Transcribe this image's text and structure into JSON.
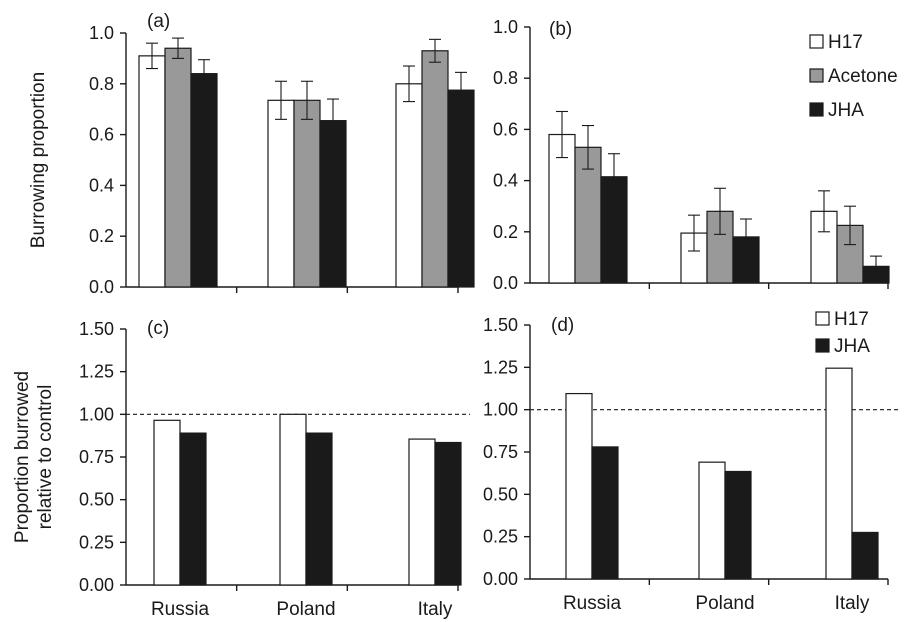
{
  "chart_data": [
    {
      "panel": "(a)",
      "type": "bar",
      "categories": [
        "Russia",
        "Poland",
        "Italy"
      ],
      "series": [
        {
          "name": "H17",
          "color": "#ffffff",
          "values": [
            0.91,
            0.735,
            0.8
          ],
          "errors": [
            0.05,
            0.075,
            0.07
          ]
        },
        {
          "name": "Acetone",
          "color": "#999999",
          "values": [
            0.94,
            0.735,
            0.93
          ],
          "errors": [
            0.04,
            0.075,
            0.045
          ]
        },
        {
          "name": "JHA",
          "color": "#1a1a1a",
          "values": [
            0.84,
            0.655,
            0.775
          ],
          "errors": [
            0.055,
            0.085,
            0.07
          ]
        }
      ],
      "ylim": [
        0,
        1.0
      ],
      "yticks": [
        "0.0",
        "0.2",
        "0.4",
        "0.6",
        "0.8",
        "1.0"
      ],
      "ylabel": "Burrowing proportion",
      "show_xlabels": false
    },
    {
      "panel": "(b)",
      "type": "bar",
      "categories": [
        "Russia",
        "Poland",
        "Italy"
      ],
      "series": [
        {
          "name": "H17",
          "color": "#ffffff",
          "values": [
            0.58,
            0.195,
            0.28
          ],
          "errors": [
            0.09,
            0.07,
            0.08
          ]
        },
        {
          "name": "Acetone",
          "color": "#999999",
          "values": [
            0.53,
            0.28,
            0.225
          ],
          "errors": [
            0.085,
            0.09,
            0.075
          ]
        },
        {
          "name": "JHA",
          "color": "#1a1a1a",
          "values": [
            0.415,
            0.18,
            0.065
          ],
          "errors": [
            0.09,
            0.07,
            0.04
          ]
        }
      ],
      "ylim": [
        0,
        1.0
      ],
      "yticks": [
        "0.0",
        "0.2",
        "0.4",
        "0.6",
        "0.8",
        "1.0"
      ],
      "ylabel": "",
      "show_xlabels": false,
      "legend": [
        "H17",
        "Acetone",
        "JHA"
      ],
      "legend_position": "top-right"
    },
    {
      "panel": "(c)",
      "type": "bar",
      "categories": [
        "Russia",
        "Poland",
        "Italy"
      ],
      "series": [
        {
          "name": "H17",
          "color": "#ffffff",
          "values": [
            0.965,
            1.0,
            0.855
          ]
        },
        {
          "name": "JHA",
          "color": "#1a1a1a",
          "values": [
            0.89,
            0.89,
            0.835
          ]
        }
      ],
      "ylim": [
        0,
        1.5
      ],
      "yticks": [
        "0.00",
        "0.25",
        "0.50",
        "0.75",
        "1.00",
        "1.25",
        "1.50"
      ],
      "ylabel": [
        "Proportion burrowed",
        "relative to control"
      ],
      "reference_line": 1.0,
      "show_xlabels": true
    },
    {
      "panel": "(d)",
      "type": "bar",
      "categories": [
        "Russia",
        "Poland",
        "Italy"
      ],
      "series": [
        {
          "name": "H17",
          "color": "#ffffff",
          "values": [
            1.095,
            0.69,
            1.245
          ]
        },
        {
          "name": "JHA",
          "color": "#1a1a1a",
          "values": [
            0.78,
            0.635,
            0.275
          ]
        }
      ],
      "ylim": [
        0,
        1.5
      ],
      "yticks": [
        "0.00",
        "0.25",
        "0.50",
        "0.75",
        "1.00",
        "1.25",
        "1.50"
      ],
      "ylabel": "",
      "reference_line": 1.0,
      "show_xlabels": true,
      "legend": [
        "H17",
        "JHA"
      ],
      "legend_position": "top-right"
    }
  ]
}
